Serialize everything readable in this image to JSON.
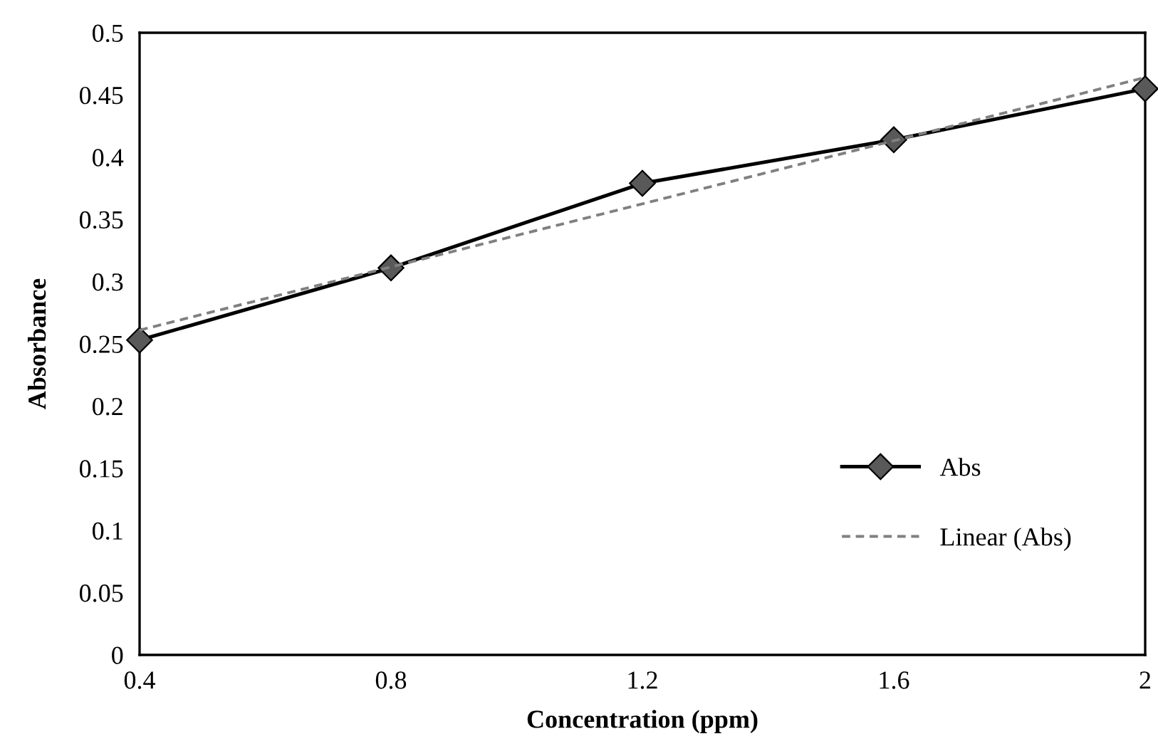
{
  "chart_data": {
    "type": "line",
    "xlabel": "Concentration (ppm)",
    "ylabel": "Absorbance",
    "xlim": [
      0.4,
      2
    ],
    "xticks": [
      0.4,
      0.8,
      1.2,
      1.6,
      2
    ],
    "ylim": [
      0,
      0.5
    ],
    "yticks": [
      0,
      0.05,
      0.1,
      0.15,
      0.2,
      0.25,
      0.3,
      0.35,
      0.4,
      0.45,
      0.5
    ],
    "grid": false,
    "legend": "bottom right",
    "series": [
      {
        "name": "Abs",
        "color": "#000000",
        "marker": "diamond",
        "line_style": "solid",
        "x": [
          0.4,
          0.8,
          1.2,
          1.6,
          2
        ],
        "values": [
          0.253,
          0.311,
          0.379,
          0.414,
          0.455
        ]
      },
      {
        "name": "Linear (Abs)",
        "color": "#808080",
        "marker": "none",
        "line_style": "dashed",
        "x": [
          0.4,
          2
        ],
        "values": [
          0.261,
          0.464
        ]
      }
    ]
  }
}
